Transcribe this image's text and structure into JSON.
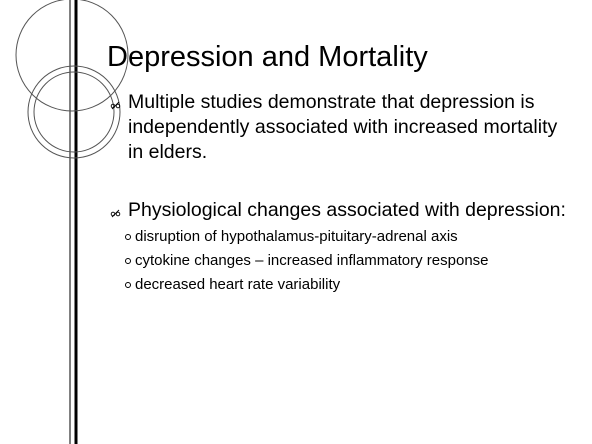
{
  "slide": {
    "title": "Depression and Mortality",
    "bullets": [
      {
        "text": "Multiple studies demonstrate that depression is independently associated with increased mortality in elders.",
        "subs": []
      },
      {
        "text": "Physiological changes associated with depression:",
        "subs": [
          "disruption of hypothalamus-pituitary-adrenal axis",
          "cytokine changes – increased inflammatory response",
          "decreased heart rate variability"
        ]
      }
    ]
  }
}
